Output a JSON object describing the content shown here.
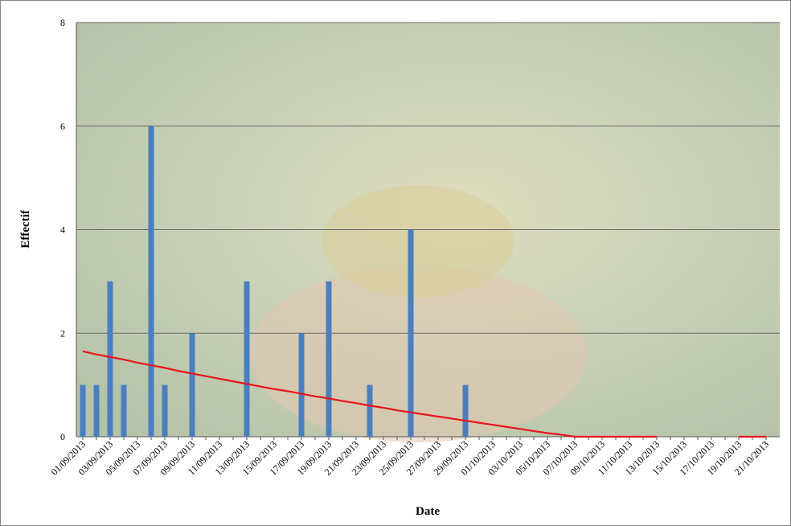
{
  "chart_data": {
    "type": "bar",
    "x_label": "Date",
    "y_label": "Effectif",
    "categories": [
      "01/09/2013",
      null,
      "03/09/2013",
      null,
      "05/09/2013",
      null,
      "07/09/2013",
      null,
      "09/09/2013",
      null,
      "11/09/2013",
      null,
      "13/09/2013",
      null,
      "15/09/2013",
      null,
      "17/09/2013",
      null,
      "19/09/2013",
      null,
      "21/09/2013",
      null,
      "23/09/2013",
      null,
      "25/09/2013",
      null,
      "27/09/2013",
      null,
      "29/09/2013",
      null,
      "01/10/2013",
      null,
      "03/10/2013",
      null,
      "05/10/2013",
      null,
      "07/10/2013",
      null,
      "09/10/2013",
      null,
      "11/10/2013",
      null,
      "13/10/2013",
      null,
      "15/10/2013",
      null,
      "17/10/2013",
      null,
      "19/10/2013",
      null,
      "21/10/2013"
    ],
    "series": [
      {
        "type": "bar",
        "color": "#4a7ebf",
        "values": [
          1,
          1,
          3,
          1,
          0,
          6,
          1,
          0,
          2,
          0,
          0,
          0,
          3,
          0,
          0,
          0,
          2,
          0,
          3,
          0,
          0,
          1,
          0,
          0,
          4,
          0,
          0,
          0,
          1,
          0,
          0,
          0,
          0,
          0,
          0,
          0,
          0,
          0,
          0,
          0,
          0,
          0,
          0,
          0,
          0,
          0,
          0,
          0,
          0,
          0,
          0
        ]
      },
      {
        "type": "line",
        "color": "#e8141c",
        "values": [
          1.65,
          1.59,
          1.54,
          1.49,
          1.43,
          1.38,
          1.33,
          1.27,
          1.22,
          1.17,
          1.12,
          1.07,
          1.02,
          0.97,
          0.92,
          0.88,
          0.83,
          0.78,
          0.74,
          0.69,
          0.65,
          0.6,
          0.56,
          0.51,
          0.47,
          0.43,
          0.39,
          0.35,
          0.31,
          0.27,
          0.23,
          0.19,
          0.15,
          0.11,
          0.07,
          0.04,
          0,
          0,
          0,
          0,
          0,
          0,
          0,
          null,
          null,
          null,
          null,
          null,
          0,
          0,
          0
        ]
      }
    ],
    "ylim": [
      0,
      8
    ],
    "yticks": [
      0,
      2,
      4,
      6,
      8
    ],
    "grid": true
  }
}
